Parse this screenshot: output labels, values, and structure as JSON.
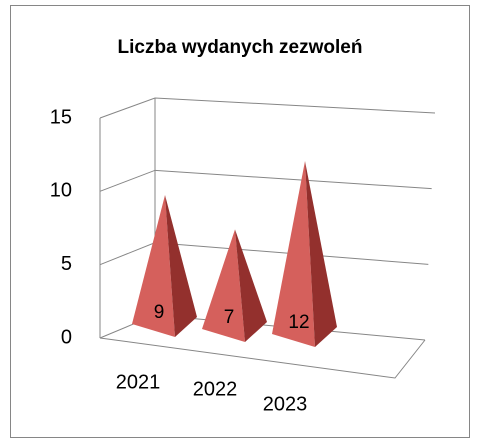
{
  "chart_data": {
    "type": "pyramid3d",
    "title": "Liczba wydanych zezwoleń",
    "categories": [
      "2021",
      "2022",
      "2023"
    ],
    "values": [
      9,
      7,
      12
    ],
    "color": "#c0504d",
    "ylim": [
      0,
      15
    ],
    "yticks": [
      0,
      5,
      10,
      15
    ],
    "grid": true
  }
}
